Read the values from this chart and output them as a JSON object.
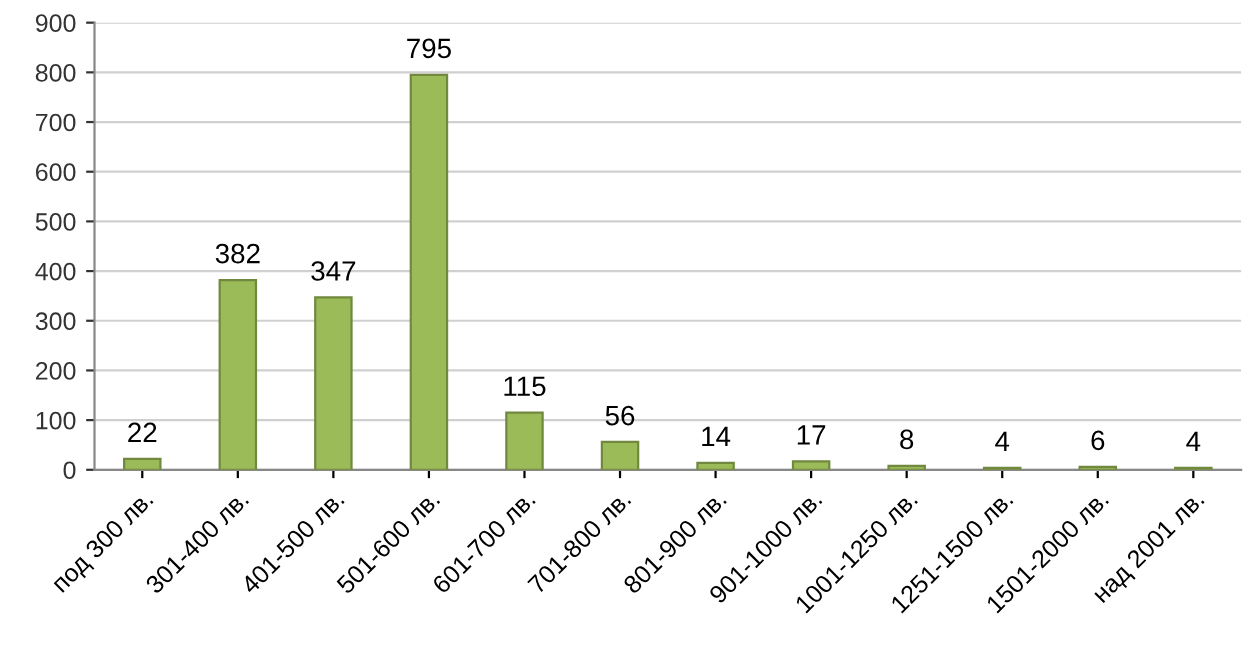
{
  "chart_data": {
    "type": "bar",
    "categories": [
      "под 300 лв.",
      "301-400 лв.",
      "401-500 лв.",
      "501-600 лв.",
      "601-700 лв.",
      "701-800 лв.",
      "801-900 лв.",
      "901-1000 лв.",
      "1001-1250 лв.",
      "1251-1500 лв.",
      "1501-2000 лв.",
      "над 2001 лв."
    ],
    "values": [
      22,
      382,
      347,
      795,
      115,
      56,
      14,
      17,
      8,
      4,
      6,
      4
    ],
    "color": "#9bbb59",
    "ylim": [
      0,
      900
    ],
    "yticks": [
      0,
      100,
      200,
      300,
      400,
      500,
      600,
      700,
      800,
      900
    ],
    "grid": "y",
    "data_labels": true
  }
}
